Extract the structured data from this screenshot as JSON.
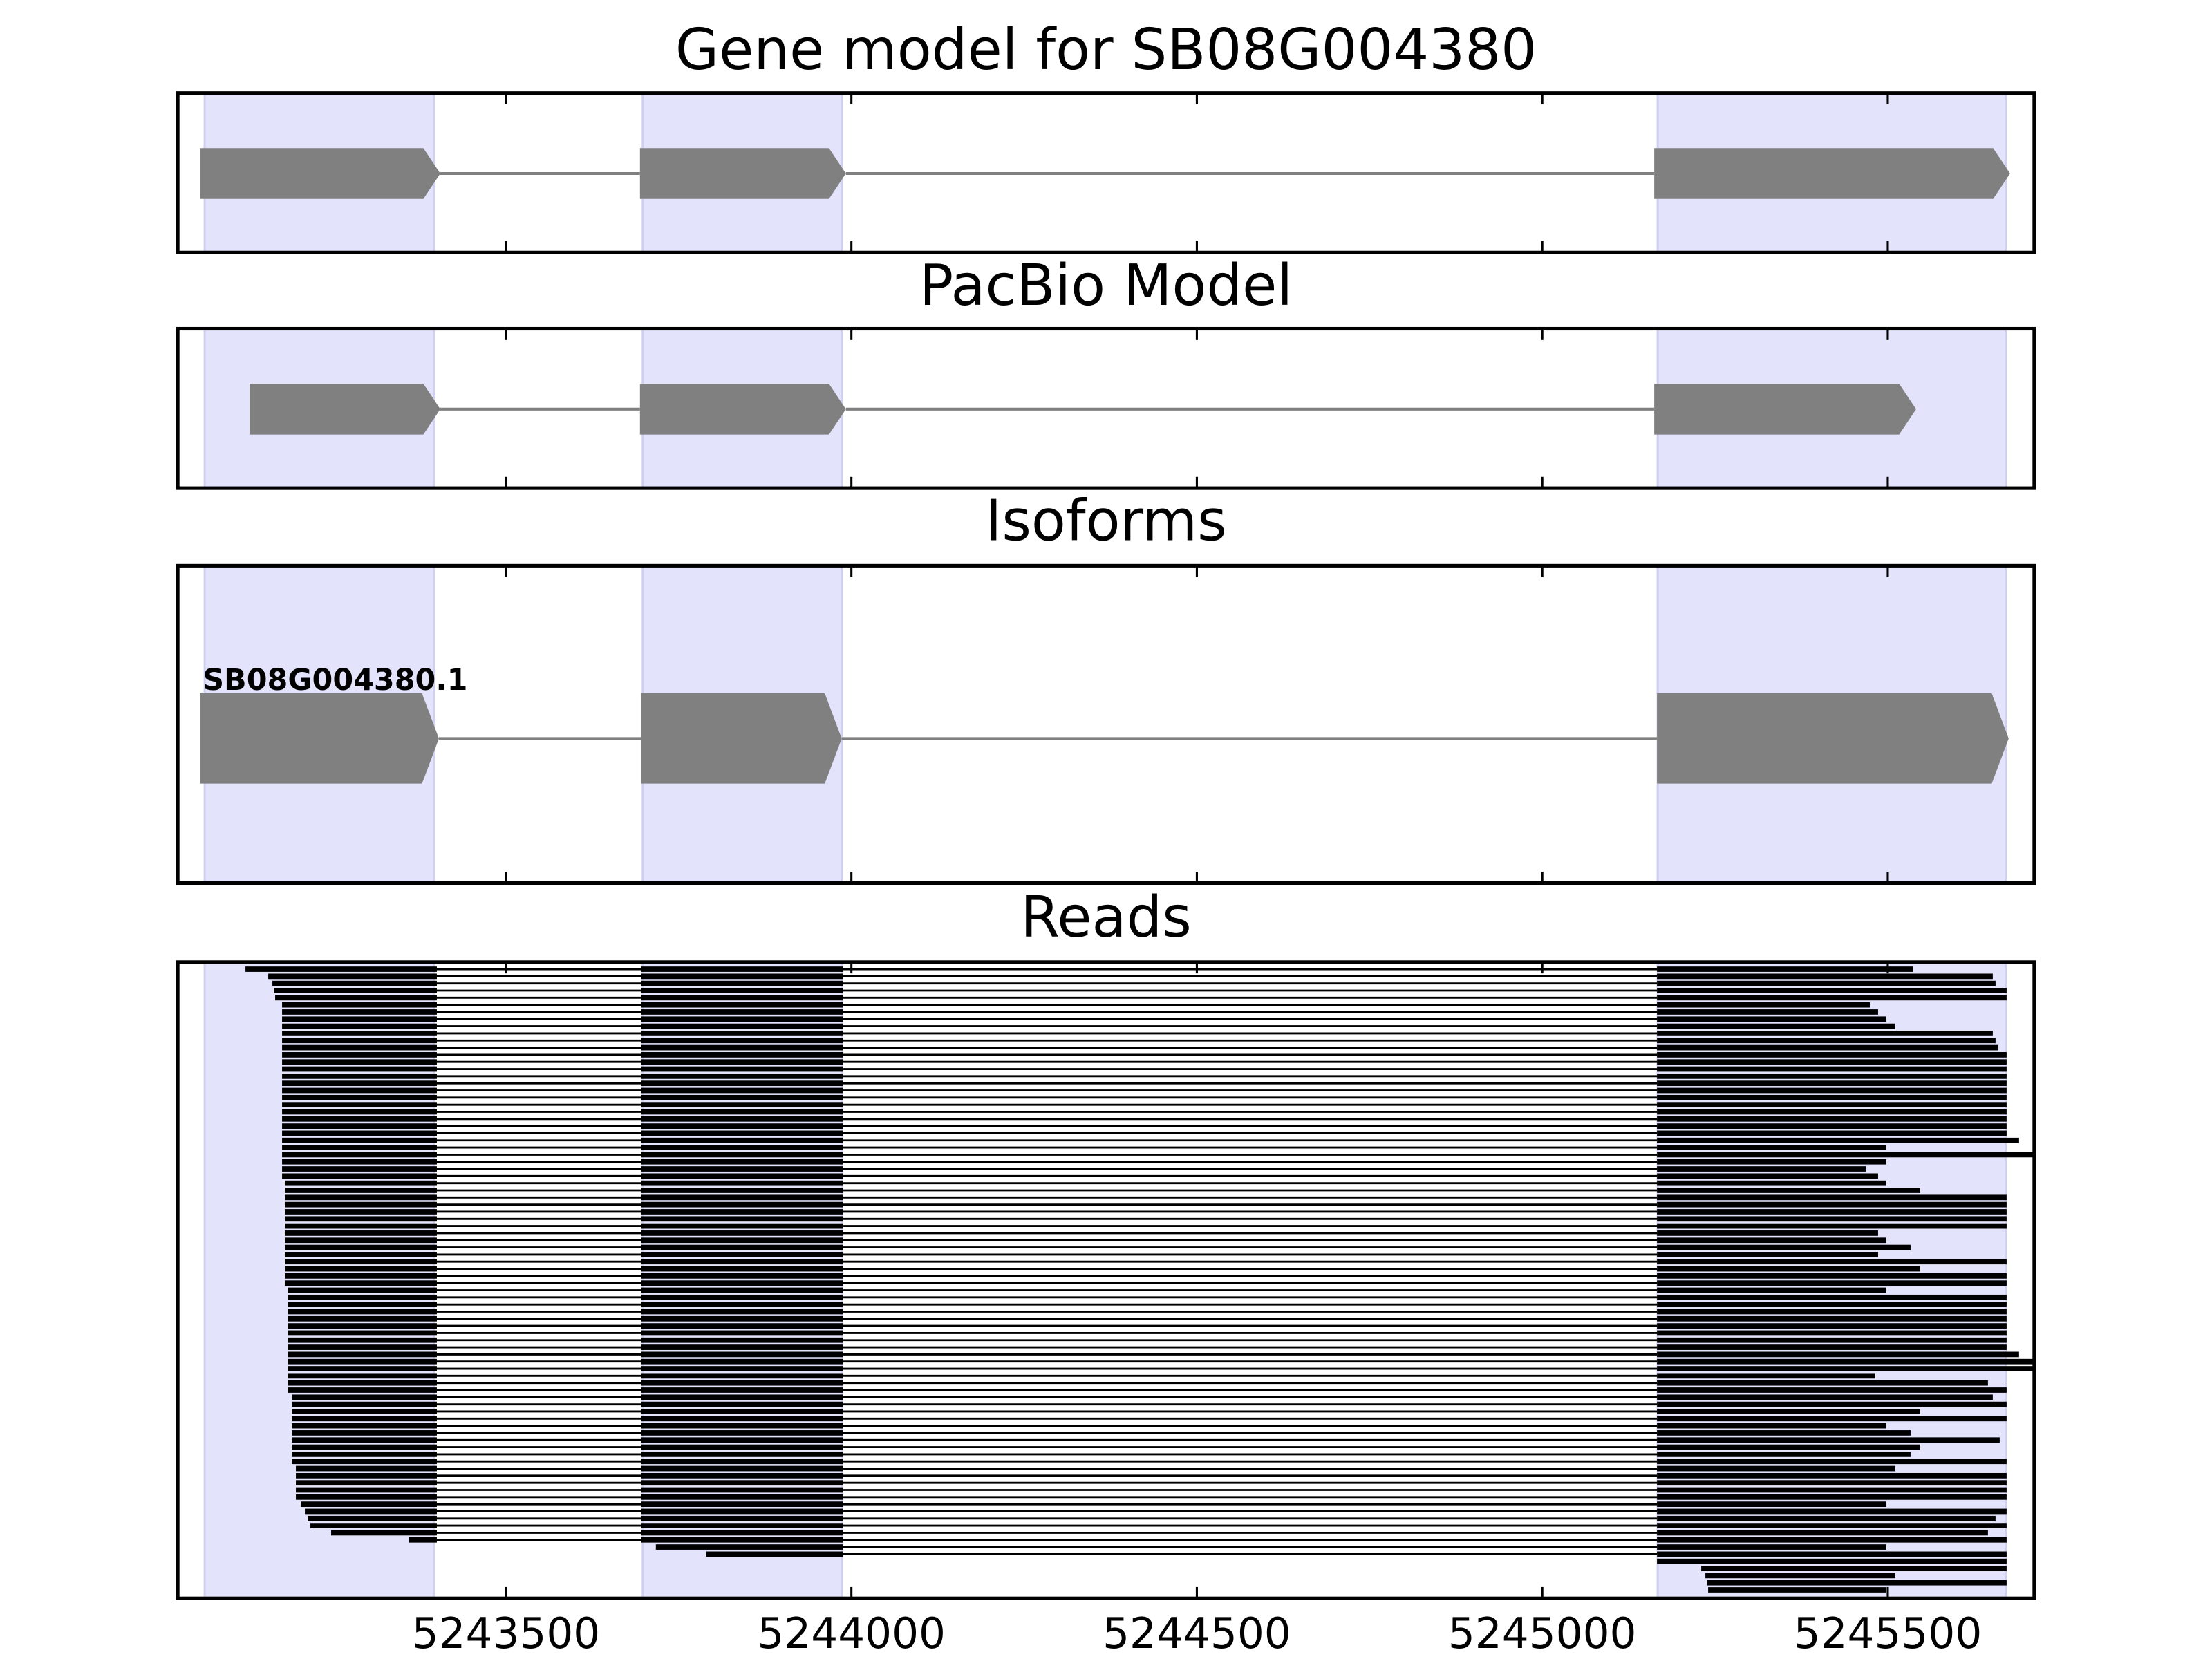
{
  "chart_data": [
    {
      "type": "gene",
      "title": "Gene model for SB08G004380",
      "xlim": [
        5243025,
        5245712
      ],
      "xticks": [
        5243500,
        5244000,
        5244500,
        5245000,
        5245500
      ],
      "regions": [
        [
          5243064,
          5243396
        ],
        [
          5243698,
          5243986
        ],
        [
          5245167,
          5245671
        ]
      ],
      "region_color": "#e3e3fb",
      "exons": [
        [
          5243057,
          5243405
        ],
        [
          5243694,
          5243992
        ],
        [
          5245162,
          5245677
        ]
      ],
      "color": "#808080"
    },
    {
      "type": "gene",
      "title": "PacBio Model",
      "xlim": [
        5243025,
        5245712
      ],
      "xticks": [
        5243500,
        5244000,
        5244500,
        5245000,
        5245500
      ],
      "regions": [
        [
          5243064,
          5243396
        ],
        [
          5243698,
          5243986
        ],
        [
          5245167,
          5245671
        ]
      ],
      "region_color": "#e3e3fb",
      "exons": [
        [
          5243129,
          5243405
        ],
        [
          5243694,
          5243992
        ],
        [
          5245162,
          5245541
        ]
      ],
      "color": "#808080"
    },
    {
      "type": "isoform",
      "title": "Isoforms",
      "xlim": [
        5243025,
        5245712
      ],
      "xticks": [
        5243500,
        5244000,
        5244500,
        5245000,
        5245500
      ],
      "regions": [
        [
          5243064,
          5243396
        ],
        [
          5243698,
          5243986
        ],
        [
          5245167,
          5245671
        ]
      ],
      "region_color": "#e3e3fb",
      "isoforms": [
        {
          "name": "SB08G004380.1",
          "exons": [
            [
              5243057,
              5243403
            ],
            [
              5243696,
              5243986
            ],
            [
              5245166,
              5245675
            ]
          ]
        }
      ],
      "color": "#808080"
    },
    {
      "type": "reads",
      "title": "Reads",
      "xlim": [
        5243025,
        5245712
      ],
      "xticks": [
        5243500,
        5244000,
        5244500,
        5245000,
        5245500
      ],
      "regions": [
        [
          5243064,
          5243396
        ],
        [
          5243698,
          5243986
        ],
        [
          5245167,
          5245671
        ]
      ],
      "region_color": "#e3e3fb",
      "junctions": [
        [
          5243400,
          5243696
        ],
        [
          5243988,
          5245166
        ]
      ],
      "color": "#000000",
      "reads": {
        "starts": [
          5243123,
          5243156,
          5243162,
          5243164,
          5243166,
          5243176,
          5243176,
          5243176,
          5243176,
          5243176,
          5243176,
          5243176,
          5243176,
          5243176,
          5243176,
          5243176,
          5243176,
          5243176,
          5243176,
          5243176,
          5243176,
          5243176,
          5243176,
          5243176,
          5243176,
          5243176,
          5243176,
          5243176,
          5243176,
          5243176,
          5243180,
          5243180,
          5243180,
          5243180,
          5243180,
          5243180,
          5243180,
          5243180,
          5243180,
          5243180,
          5243180,
          5243180,
          5243180,
          5243180,
          5243180,
          5243184,
          5243184,
          5243184,
          5243184,
          5243184,
          5243184,
          5243184,
          5243184,
          5243184,
          5243184,
          5243184,
          5243184,
          5243184,
          5243184,
          5243184,
          5243190,
          5243190,
          5243190,
          5243190,
          5243190,
          5243190,
          5243190,
          5243190,
          5243190,
          5243190,
          5243196,
          5243196,
          5243196,
          5243196,
          5243196,
          5243203,
          5243209,
          5243213,
          5243217,
          5243247,
          5243360,
          5243717,
          5243790,
          5245162,
          5245230,
          5245236,
          5245238,
          5245240
        ],
        "ends": [
          5245537,
          5245652,
          5245656,
          5245672,
          5245672,
          5245474,
          5245486,
          5245498,
          5245511,
          5245652,
          5245656,
          5245660,
          5245672,
          5245672,
          5245672,
          5245672,
          5245672,
          5245672,
          5245672,
          5245672,
          5245672,
          5245672,
          5245672,
          5245672,
          5245690,
          5245498,
          5245711,
          5245498,
          5245468,
          5245486,
          5245498,
          5245547,
          5245672,
          5245672,
          5245672,
          5245672,
          5245672,
          5245486,
          5245498,
          5245533,
          5245486,
          5245672,
          5245547,
          5245672,
          5245672,
          5245498,
          5245672,
          5245672,
          5245672,
          5245672,
          5245672,
          5245672,
          5245672,
          5245672,
          5245690,
          5245711,
          5245711,
          5245482,
          5245645,
          5245672,
          5245652,
          5245672,
          5245547,
          5245672,
          5245498,
          5245533,
          5245662,
          5245547,
          5245533,
          5245672,
          5245511,
          5245672,
          5245672,
          5245672,
          5245672,
          5245498,
          5245672,
          5245656,
          5245672,
          5245645,
          5245672,
          5245498,
          5245672,
          5245672,
          5245672,
          5245511,
          5245672,
          5245498
        ]
      }
    }
  ]
}
